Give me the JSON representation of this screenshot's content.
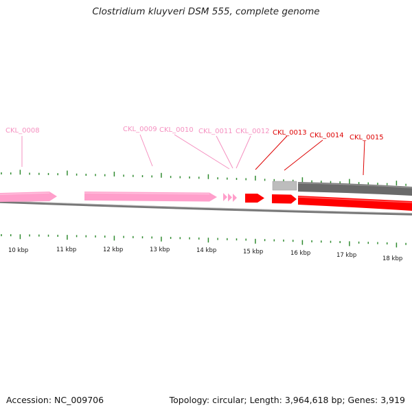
{
  "title": "Clostridium kluyveri DSM 555, complete genome",
  "colors": {
    "tick": "#2f8a2f",
    "gene_pink": "#ff9fcb",
    "gene_red": "#ff0000",
    "label_pink": "#f590c0",
    "label_red": "#dd0000",
    "gray_light": "#b8b8b8",
    "gray_dark": "#6a6a6a",
    "backbone": "#777777"
  },
  "scale_labels": [
    "10 kbp",
    "11 kbp",
    "12 kbp",
    "13 kbp",
    "14 kbp",
    "15 kbp",
    "16 kbp",
    "17 kbp",
    "18 kbp"
  ],
  "genes": [
    {
      "id": "CKL_0008",
      "label": "CKL_0008",
      "color": "pink"
    },
    {
      "id": "CKL_0009",
      "label": "CKL_0009",
      "color": "pink"
    },
    {
      "id": "CKL_0010",
      "label": "CKL_0010",
      "color": "pink"
    },
    {
      "id": "CKL_0011",
      "label": "CKL_0011",
      "color": "pink"
    },
    {
      "id": "CKL_0012",
      "label": "CKL_0012",
      "color": "pink"
    },
    {
      "id": "CKL_0013",
      "label": "CKL_0013",
      "color": "red"
    },
    {
      "id": "CKL_0014",
      "label": "CKL_0014",
      "color": "red"
    },
    {
      "id": "CKL_0015",
      "label": "CKL_0015",
      "color": "red"
    }
  ],
  "footer": {
    "accession": "Accession: NC_009706",
    "summary": "Topology: circular; Length: 3,964,618 bp; Genes: 3,919"
  }
}
